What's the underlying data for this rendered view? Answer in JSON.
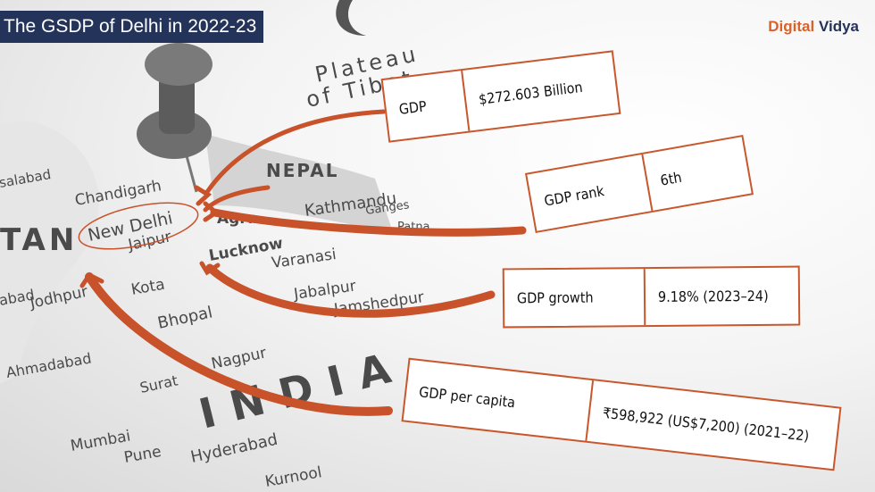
{
  "header": {
    "title": "The GSDP of Delhi in 2022-23"
  },
  "logo": {
    "part1": "Digital",
    "part2": "Vidya"
  },
  "boxes": [
    {
      "label": "GDP",
      "value": "$272.603 Billion"
    },
    {
      "label": "GDP rank",
      "value": "6th"
    },
    {
      "label": "GDP growth",
      "value": "9.18% (2023–24)"
    },
    {
      "label": "GDP per capita",
      "value": "₹598,922 (US$7,200) (2021–22)"
    }
  ],
  "map_labels": [
    "Plateau",
    "of Tibet",
    "NEPAL",
    "Kathmandu",
    "Chandigarh",
    "New Delhi",
    "Jaipur",
    "Agra",
    "Lucknow",
    "Varanasi",
    "Jabalpur",
    "Jamshedpur",
    "Ganges",
    "Patna",
    "Kota",
    "Bhopal",
    "Jodhpur",
    "Ahmadabad",
    "Surat",
    "Nagpur",
    "INDIA",
    "Mumbai",
    "Pune",
    "Hyderabad",
    "Kurnool",
    "TAN",
    "salabad",
    "abad"
  ]
}
